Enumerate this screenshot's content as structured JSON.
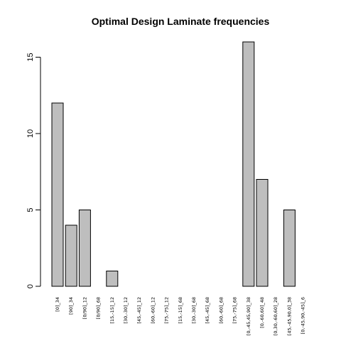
{
  "chart_data": {
    "type": "bar",
    "title": "Optimal Design Laminate frequencies",
    "xlabel": "",
    "ylabel": "",
    "ylim": [
      0,
      16
    ],
    "yticks": [
      0,
      5,
      10,
      15
    ],
    "categories": [
      "[0]_34",
      "[90]_34",
      "[0/90]_12",
      "[0/90]_68",
      "[15,-15]_12",
      "[30,-30]_12",
      "[45,-45]_12",
      "[60,-60]_12",
      "[75,-75]_12",
      "[15,-15]_68",
      "[30,-30]_68",
      "[45,-45]_68",
      "[60,-60]_68",
      "[75,-75]_68",
      "[0,-45,45,90]_38",
      "[0,-60,60]_48",
      "[0,30,-60,60]_28",
      "[45,-45,90,0]_38",
      "[0,-45,90,-45]_6"
    ],
    "values": [
      12,
      4,
      5,
      0,
      1,
      0,
      0,
      0,
      0,
      0,
      0,
      0,
      0,
      0,
      16,
      7,
      0,
      5,
      0
    ],
    "colors": {
      "bar_fill": "#bebebe",
      "bar_stroke": "#000000"
    }
  }
}
